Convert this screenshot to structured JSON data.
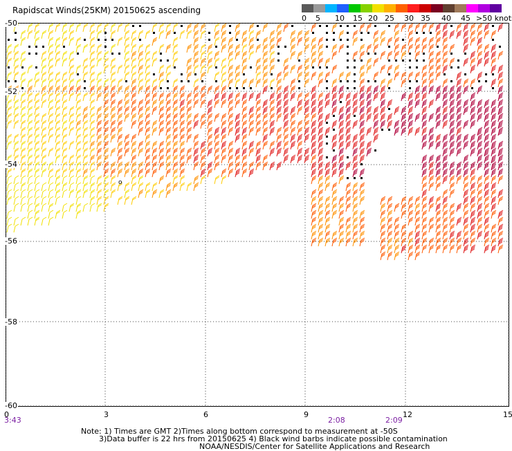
{
  "title": "Rapidscat Winds(25KM) 20150625 ascending",
  "colorbar": {
    "labels": [
      "0",
      "5",
      "10",
      "15",
      "20",
      "25",
      "30",
      "35",
      "40",
      "45",
      ">50 knots"
    ],
    "colors": [
      "#5a5a5a",
      "#9a9a9a",
      "#00b4ff",
      "#2060ff",
      "#00c800",
      "#86d200",
      "#f2e000",
      "#ffb000",
      "#ff6000",
      "#ff1e1e",
      "#cc0000",
      "#7a0020",
      "#604030",
      "#a07a5a",
      "#ff00ff",
      "#b000e0",
      "#6000a0"
    ]
  },
  "map": {
    "lat_labels": [
      "-50",
      "-52",
      "-54",
      "-56",
      "-58",
      "-60"
    ],
    "lon_labels": [
      "0",
      "3",
      "6",
      "9",
      "12",
      "15"
    ],
    "times": [
      {
        "label": "3:43",
        "lon": 0
      },
      {
        "label": "2:08",
        "lon": 10
      },
      {
        "label": "2:09",
        "lon": 11.8
      }
    ],
    "lon_range": [
      0,
      15
    ],
    "lat_range": [
      -60,
      -50
    ]
  },
  "notes": [
    "Note: 1) Times are GMT 2)Times along bottom correspond to measurement at -50S",
    "3)Data buffer is 22 hrs from 20150625 4) Black wind barbs indicate possible contamination",
    "NOAA/NESDIS/Center for Satellite Applications and Research"
  ]
}
